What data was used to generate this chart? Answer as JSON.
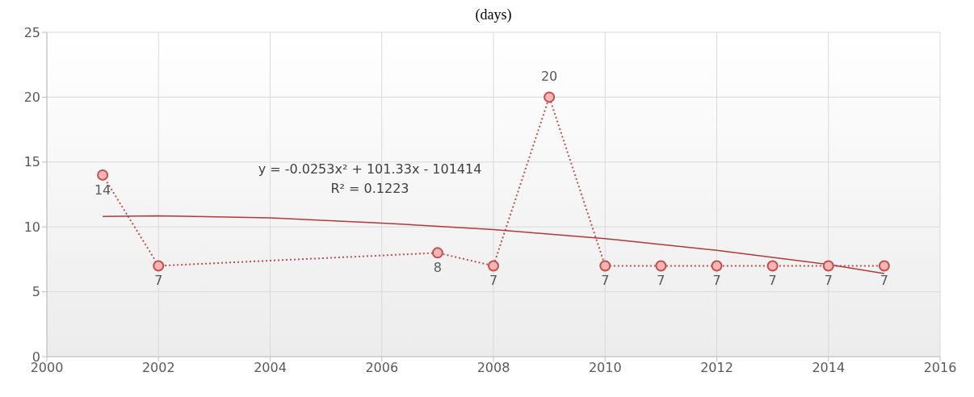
{
  "chart_data": {
    "type": "line",
    "title": "(days)",
    "x": [
      2001,
      2002,
      2007,
      2008,
      2009,
      2010,
      2011,
      2012,
      2013,
      2014,
      2015
    ],
    "series": [
      {
        "color": "#c0504d",
        "values": [
          14,
          7,
          8,
          7,
          20,
          7,
          7,
          7,
          7,
          7,
          7
        ],
        "line_style": "dotted",
        "marker": "circle",
        "data_labels": true
      },
      {
        "type": "line",
        "color": "#b03a3a",
        "x": [
          2001,
          2002,
          2004,
          2006,
          2008,
          2010,
          2012,
          2014,
          2015
        ],
        "values": [
          10.8,
          10.85,
          10.7,
          10.3,
          9.8,
          9.1,
          8.2,
          7.1,
          6.4
        ],
        "line_style": "solid",
        "marker": "none"
      }
    ],
    "annotations": [
      "y = -0.0253x² + 101.33x - 101414",
      "R² = 0.1223"
    ],
    "xlim": [
      2000,
      2016
    ],
    "xticks": [
      2000,
      2002,
      2004,
      2006,
      2008,
      2010,
      2012,
      2014,
      2016
    ],
    "ylim": [
      0,
      25
    ],
    "yticks": [
      0,
      5,
      10,
      15,
      20,
      25
    ],
    "grid": true
  }
}
